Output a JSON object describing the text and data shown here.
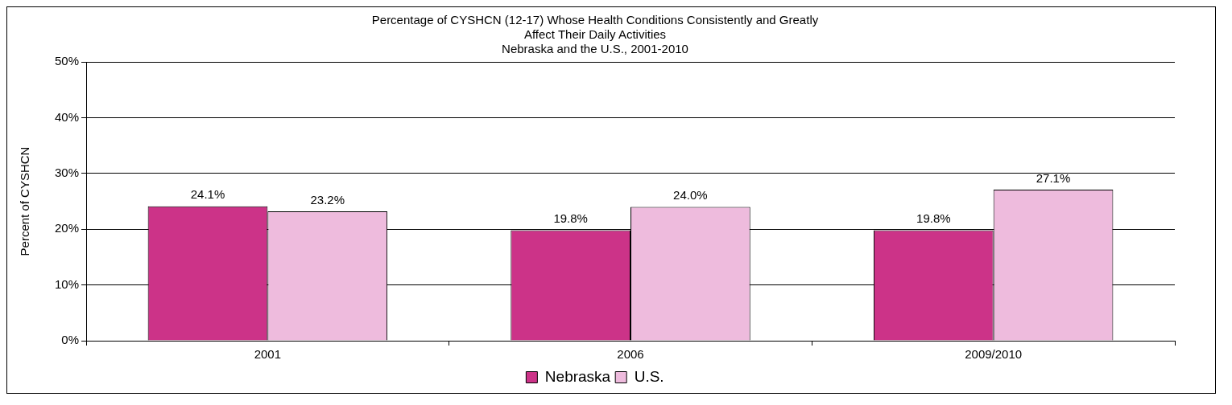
{
  "chart_data": {
    "type": "bar",
    "title": "Percentage of CYSHCN (12-17) Whose Health Conditions Consistently and Greatly Affect Their Daily Activities",
    "subtitle": "Nebraska and the U.S., 2001-2010",
    "ylabel": "Percent of CYSHCN",
    "categories": [
      "2001",
      "2006",
      "2009/2010"
    ],
    "series": [
      {
        "name": "Nebraska",
        "color": "#cc3388",
        "values": [
          24.1,
          19.8,
          19.8
        ],
        "value_labels": [
          "24.1%",
          "19.8%",
          "19.8%"
        ]
      },
      {
        "name": "U.S.",
        "color": "#eebbdd",
        "values": [
          23.2,
          24.0,
          27.1
        ],
        "value_labels": [
          "23.2%",
          "24.0%",
          "27.1%"
        ]
      }
    ],
    "ylim": [
      0,
      50
    ],
    "yticks": [
      {
        "value": 0,
        "label": "0%"
      },
      {
        "value": 10,
        "label": "10%"
      },
      {
        "value": 20,
        "label": "20%"
      },
      {
        "value": 30,
        "label": "30%"
      },
      {
        "value": 40,
        "label": "40%"
      },
      {
        "value": 50,
        "label": "50%"
      }
    ],
    "grid": "y",
    "legend": "bottom"
  }
}
